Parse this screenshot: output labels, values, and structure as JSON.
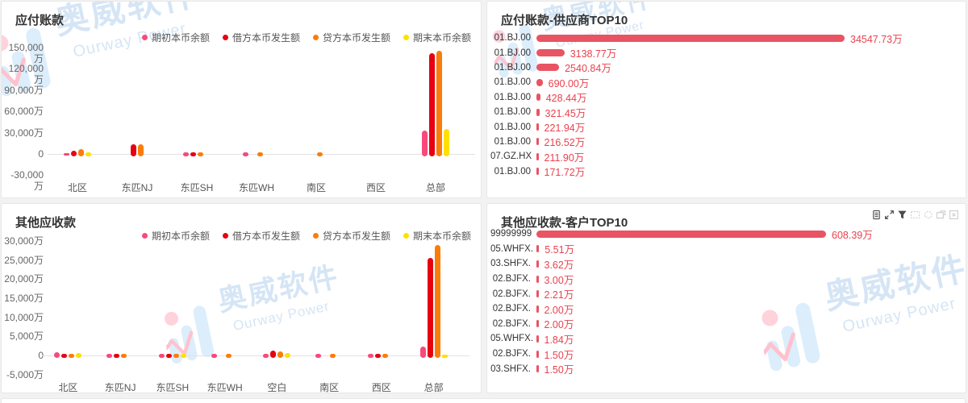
{
  "watermark": {
    "cn": "奥威软件",
    "en": "Ourway Power"
  },
  "colors": {
    "pink": "#f8497c",
    "red": "#e60012",
    "orange": "#fb7d09",
    "yellow": "#ffe000",
    "hbar": "#e85463",
    "hvalue": "#e8424e"
  },
  "panels": {
    "payable": {
      "title": "应付账款"
    },
    "payable_top10": {
      "title": "应付账款-供应商TOP10"
    },
    "other_receivable": {
      "title": "其他应收款"
    },
    "other_receivable_top10": {
      "title": "其他应收款-客户TOP10"
    }
  },
  "toolbar": {
    "icons": [
      "data-view-icon",
      "expand-icon",
      "filter-icon",
      "brush-rect-icon",
      "brush-lasso-icon",
      "brush-keep-icon",
      "brush-clear-icon"
    ]
  },
  "chart_data": [
    {
      "type": "bar",
      "title": "应付账款",
      "unit": "万",
      "grid": false,
      "legend_position": "top-right",
      "categories": [
        "北区",
        "东匹NJ",
        "东匹SH",
        "东匹WH",
        "南区",
        "西区",
        "总部"
      ],
      "series": [
        {
          "name": "期初本币余额",
          "color": "#f8497c",
          "values": [
            -1500,
            0,
            1800,
            1600,
            0,
            0,
            33000
          ]
        },
        {
          "name": "借方本币发生额",
          "color": "#e60012",
          "values": [
            4500,
            14000,
            2200,
            0,
            0,
            0,
            141500
          ]
        },
        {
          "name": "贷方本币发生额",
          "color": "#fb7d09",
          "values": [
            6500,
            14000,
            2000,
            1600,
            1000,
            0,
            145500
          ]
        },
        {
          "name": "期末本币余额",
          "color": "#ffe000",
          "values": [
            800,
            0,
            0,
            0,
            0,
            0,
            35500
          ]
        }
      ],
      "ylim": [
        -30000,
        150000
      ],
      "y_ticks": [
        {
          "v": 150000,
          "label": "150,000万"
        },
        {
          "v": 120000,
          "label": "120,000万"
        },
        {
          "v": 90000,
          "label": "90,000万"
        },
        {
          "v": 60000,
          "label": "60,000万"
        },
        {
          "v": 30000,
          "label": "30,000万"
        },
        {
          "v": 0,
          "label": "0"
        },
        {
          "v": -30000,
          "label": "-30,000万"
        }
      ]
    },
    {
      "type": "hbar",
      "title": "应付账款-供应商TOP10",
      "max": 34547.73,
      "rows": [
        {
          "label": "01.BJ.00",
          "value": 34547.73,
          "display": "34547.73万"
        },
        {
          "label": "01.BJ.00",
          "value": 3138.77,
          "display": "3138.77万"
        },
        {
          "label": "01.BJ.00",
          "value": 2540.84,
          "display": "2540.84万"
        },
        {
          "label": "01.BJ.00",
          "value": 690.0,
          "display": "690.00万"
        },
        {
          "label": "01.BJ.00",
          "value": 428.44,
          "display": "428.44万"
        },
        {
          "label": "01.BJ.00",
          "value": 321.45,
          "display": "321.45万"
        },
        {
          "label": "01.BJ.00",
          "value": 221.94,
          "display": "221.94万"
        },
        {
          "label": "01.BJ.00",
          "value": 216.52,
          "display": "216.52万"
        },
        {
          "label": "07.GZ.HX",
          "value": 211.9,
          "display": "211.90万"
        },
        {
          "label": "01.BJ.00",
          "value": 171.72,
          "display": "171.72万"
        }
      ]
    },
    {
      "type": "bar",
      "title": "其他应收款",
      "unit": "万",
      "grid": false,
      "legend_position": "top-right",
      "categories": [
        "北区",
        "东匹NJ",
        "东匹SH",
        "东匹WH",
        "空白",
        "南区",
        "西区",
        "总部"
      ],
      "series": [
        {
          "name": "期初本币余额",
          "color": "#f8497c",
          "values": [
            800,
            250,
            250,
            200,
            400,
            200,
            150,
            2300
          ]
        },
        {
          "name": "借方本币发生额",
          "color": "#e60012",
          "values": [
            300,
            250,
            350,
            0,
            1200,
            0,
            450,
            25500
          ]
        },
        {
          "name": "贷方本币发生额",
          "color": "#fb7d09",
          "values": [
            350,
            250,
            250,
            200,
            1000,
            250,
            450,
            28800
          ]
        },
        {
          "name": "期末本币余额",
          "color": "#ffe000",
          "values": [
            700,
            0,
            100,
            0,
            550,
            0,
            0,
            -700
          ]
        }
      ],
      "ylim": [
        -5000,
        30000
      ],
      "y_ticks": [
        {
          "v": 30000,
          "label": "30,000万"
        },
        {
          "v": 25000,
          "label": "25,000万"
        },
        {
          "v": 20000,
          "label": "20,000万"
        },
        {
          "v": 15000,
          "label": "15,000万"
        },
        {
          "v": 10000,
          "label": "10,000万"
        },
        {
          "v": 5000,
          "label": "5,000万"
        },
        {
          "v": 0,
          "label": "0"
        },
        {
          "v": -5000,
          "label": "-5,000万"
        }
      ]
    },
    {
      "type": "hbar",
      "title": "其他应收款-客户TOP10",
      "max": 608.39,
      "rows": [
        {
          "label": "99999999",
          "value": 608.39,
          "display": "608.39万"
        },
        {
          "label": "05.WHFX.",
          "value": 5.51,
          "display": "5.51万"
        },
        {
          "label": "03.SHFX.",
          "value": 3.62,
          "display": "3.62万"
        },
        {
          "label": "02.BJFX.",
          "value": 3.0,
          "display": "3.00万"
        },
        {
          "label": "02.BJFX.",
          "value": 2.21,
          "display": "2.21万"
        },
        {
          "label": "02.BJFX.",
          "value": 2.0,
          "display": "2.00万"
        },
        {
          "label": "02.BJFX.",
          "value": 2.0,
          "display": "2.00万"
        },
        {
          "label": "05.WHFX.",
          "value": 1.84,
          "display": "1.84万"
        },
        {
          "label": "02.BJFX.",
          "value": 1.5,
          "display": "1.50万"
        },
        {
          "label": "03.SHFX.",
          "value": 1.5,
          "display": "1.50万"
        }
      ]
    }
  ]
}
